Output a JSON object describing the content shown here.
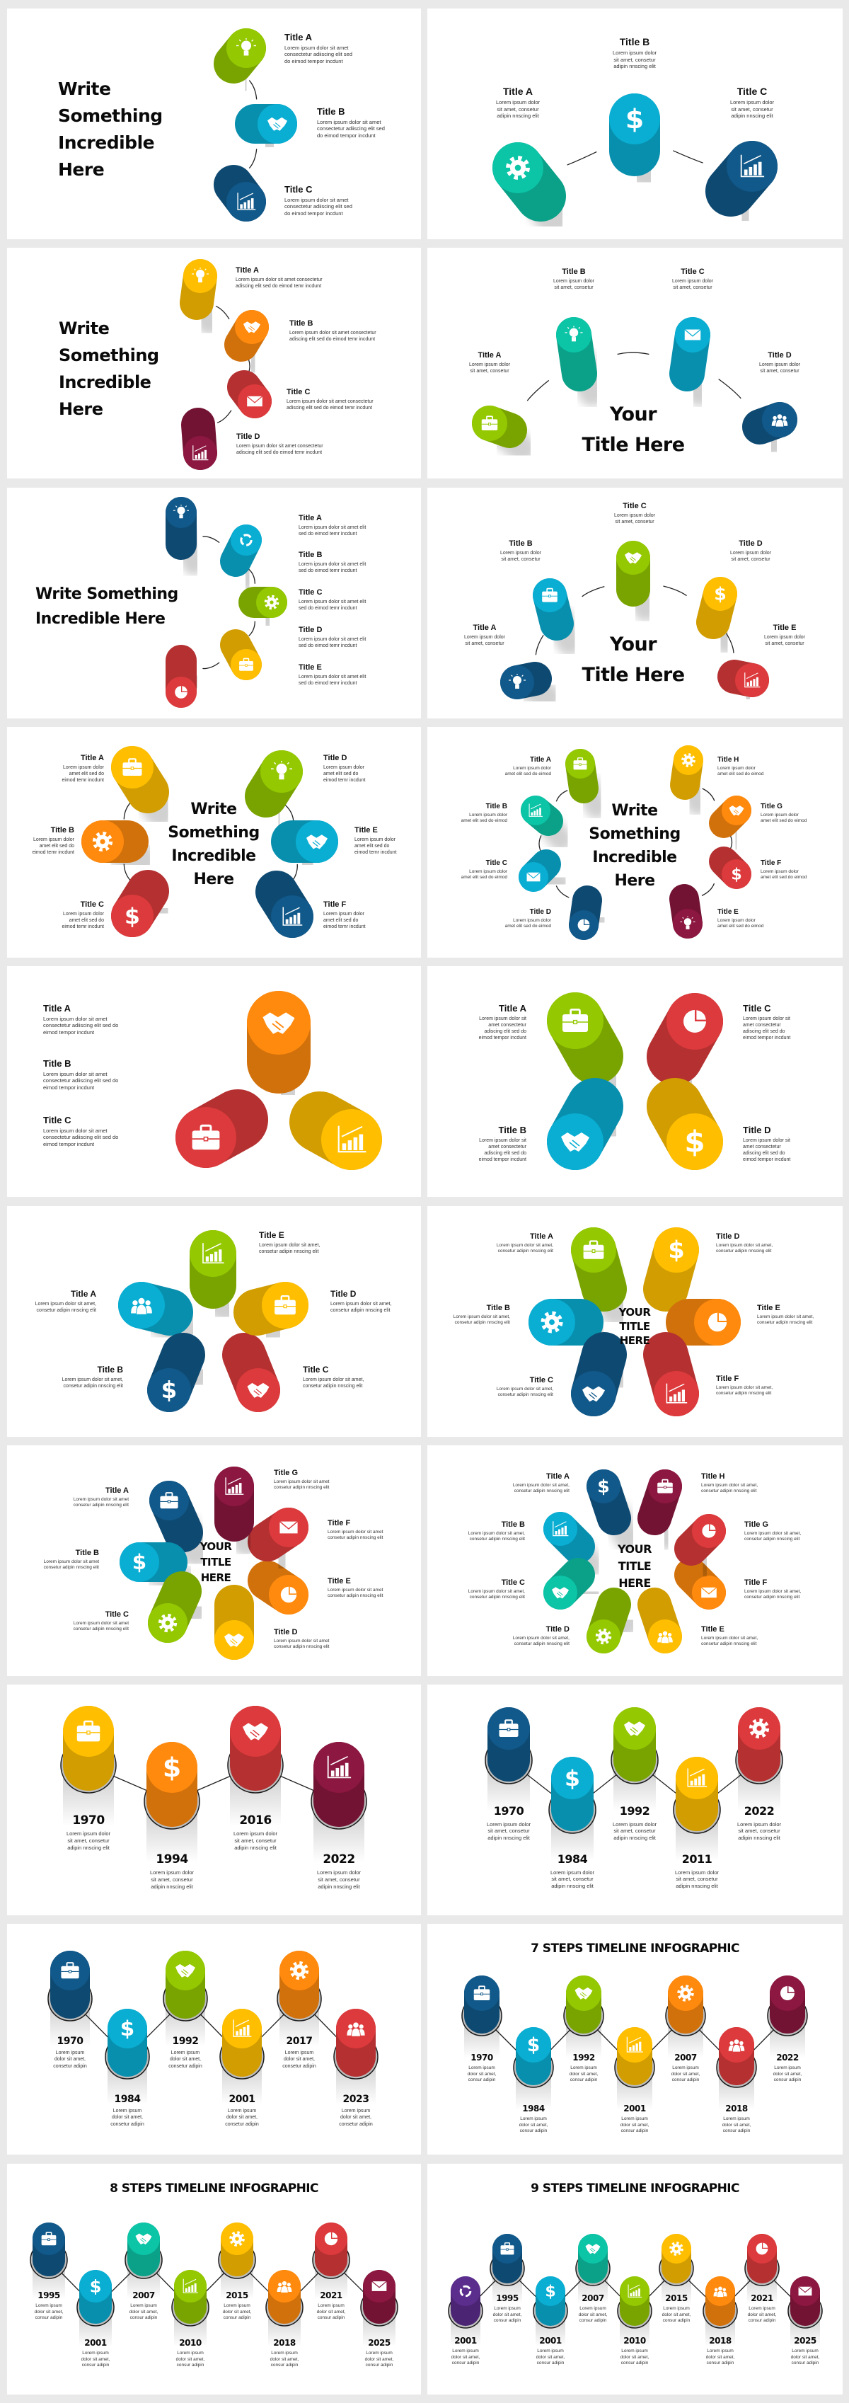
{
  "colors": {
    "green": "#94c800",
    "cyan": "#0aaed3",
    "teal": "#0cc4a6",
    "navy": "#11598a",
    "yellow": "#ffbf00",
    "orange": "#ff8a0e",
    "red": "#dc3a3c",
    "maroon": "#8c1740",
    "purple": "#5b2d8c"
  },
  "panels": [
    {
      "title_lines": [
        "Write",
        "Something",
        "Incredible",
        "Here"
      ],
      "desc": "Lorem ipsum dolor sit amet\nconsectetur adiiscing elit sed\ndo eimod tempor incdunt",
      "items": [
        {
          "title": "Title A",
          "color": "#94c800",
          "icon": "lightbulb"
        },
        {
          "title": "Title B",
          "color": "#0aaed3",
          "icon": "handshake"
        },
        {
          "title": "Title C",
          "color": "#11598a",
          "icon": "bar-chart"
        }
      ]
    },
    {
      "desc": "Lorem ipsum dolor\nsit amet, consetur\nadipin nnscing elit",
      "items": [
        {
          "title": "Title A",
          "color": "#0cc4a6",
          "icon": "gear"
        },
        {
          "title": "Title B",
          "color": "#0aaed3",
          "icon": "dollar"
        },
        {
          "title": "Title C",
          "color": "#11598a",
          "icon": "bar-chart"
        }
      ]
    },
    {
      "title_lines": [
        "Write",
        "Something",
        "Incredible",
        "Here"
      ],
      "desc": "Lorem ipsum dolor sit amet consectetur\nadiscing elit sed do eimod temr incdunt",
      "items": [
        {
          "title": "Title A",
          "color": "#ffbf00",
          "icon": "lightbulb"
        },
        {
          "title": "Title B",
          "color": "#ff8a0e",
          "icon": "handshake"
        },
        {
          "title": "Title C",
          "color": "#dc3a3c",
          "icon": "mail"
        },
        {
          "title": "Title D",
          "color": "#8c1740",
          "icon": "bar-chart"
        }
      ]
    },
    {
      "title_lines": [
        "Your",
        "Title Here"
      ],
      "desc": "Lorem ipsum dolor\nsit amet, consetur",
      "items": [
        {
          "title": "Title A",
          "color": "#94c800",
          "icon": "briefcase"
        },
        {
          "title": "Title B",
          "color": "#0cc4a6",
          "icon": "lightbulb"
        },
        {
          "title": "Title C",
          "color": "#0aaed3",
          "icon": "mail"
        },
        {
          "title": "Title D",
          "color": "#11598a",
          "icon": "users"
        }
      ]
    },
    {
      "title_lines": [
        "Write Something",
        "Incredible Here"
      ],
      "desc": "Lorem ipsum dolor sit amet elit\nsed do eimod temr incdunt",
      "items": [
        {
          "title": "Title A",
          "color": "#11598a",
          "icon": "lightbulb"
        },
        {
          "title": "Title B",
          "color": "#0aaed3",
          "icon": "cycle"
        },
        {
          "title": "Title C",
          "color": "#94c800",
          "icon": "gear"
        },
        {
          "title": "Title D",
          "color": "#ffbf00",
          "icon": "briefcase"
        },
        {
          "title": "Title E",
          "color": "#dc3a3c",
          "icon": "pie-chart"
        }
      ]
    },
    {
      "title_lines": [
        "Your",
        "Title Here"
      ],
      "desc": "Lorem ipsum dolor\nsit amet, consetur",
      "items": [
        {
          "title": "Title A",
          "color": "#11598a",
          "icon": "lightbulb"
        },
        {
          "title": "Title B",
          "color": "#0aaed3",
          "icon": "briefcase"
        },
        {
          "title": "Title C",
          "color": "#94c800",
          "icon": "handshake"
        },
        {
          "title": "Title D",
          "color": "#ffbf00",
          "icon": "dollar"
        },
        {
          "title": "Title E",
          "color": "#dc3a3c",
          "icon": "bar-chart"
        }
      ]
    },
    {
      "title_lines": [
        "Write",
        "Something",
        "Incredible",
        "Here"
      ],
      "desc": "Lorem ipsum dolor\namet elit sed do\neimod temr incdunt",
      "items": [
        {
          "title": "Title A",
          "color": "#ffbf00",
          "icon": "briefcase"
        },
        {
          "title": "Title B",
          "color": "#ff8a0e",
          "icon": "gear"
        },
        {
          "title": "Title C",
          "color": "#dc3a3c",
          "icon": "dollar"
        },
        {
          "title": "Title D",
          "color": "#94c800",
          "icon": "lightbulb"
        },
        {
          "title": "Title E",
          "color": "#0aaed3",
          "icon": "handshake"
        },
        {
          "title": "Title F",
          "color": "#11598a",
          "icon": "bar-chart"
        }
      ]
    },
    {
      "title_lines": [
        "Write",
        "Something",
        "Incredible",
        "Here"
      ],
      "desc": "Lorem ipsum dolor\namet elit sed do eimod",
      "items": [
        {
          "title": "Title A",
          "color": "#94c800",
          "icon": "briefcase"
        },
        {
          "title": "Title B",
          "color": "#0cc4a6",
          "icon": "bar-chart"
        },
        {
          "title": "Title C",
          "color": "#0aaed3",
          "icon": "mail"
        },
        {
          "title": "Title D",
          "color": "#11598a",
          "icon": "pie-chart"
        },
        {
          "title": "Title E",
          "color": "#8c1740",
          "icon": "lightbulb"
        },
        {
          "title": "Title F",
          "color": "#dc3a3c",
          "icon": "dollar"
        },
        {
          "title": "Title G",
          "color": "#ff8a0e",
          "icon": "handshake"
        },
        {
          "title": "Title H",
          "color": "#ffbf00",
          "icon": "gear"
        }
      ]
    },
    {
      "desc": "Lorem ipsum dolor sit amet\nconsectetur adiiscing elit sed do\neimod tempor incdunt",
      "items": [
        {
          "title": "Title A",
          "color": "#ff8a0e",
          "icon": "handshake"
        },
        {
          "title": "Title B",
          "color": "#dc3a3c",
          "icon": "briefcase"
        },
        {
          "title": "Title C",
          "color": "#ffbf00",
          "icon": "bar-chart"
        }
      ]
    },
    {
      "desc": "Lorem ipsum dolor sit\namet consectetur\nadiscing elit sed do\neimod tempor incdunt",
      "items": [
        {
          "title": "Title A",
          "color": "#94c800",
          "icon": "briefcase"
        },
        {
          "title": "Title B",
          "color": "#0aaed3",
          "icon": "handshake"
        },
        {
          "title": "Title C",
          "color": "#dc3a3c",
          "icon": "pie-chart"
        },
        {
          "title": "Title D",
          "color": "#ffbf00",
          "icon": "dollar"
        }
      ]
    },
    {
      "desc": "Lorem ipsum dolor sit amet,\nconsetur adipin nnscing elit",
      "items": [
        {
          "title": "Title A",
          "color": "#0aaed3",
          "icon": "users"
        },
        {
          "title": "Title B",
          "color": "#11598a",
          "icon": "dollar"
        },
        {
          "title": "Title C",
          "color": "#dc3a3c",
          "icon": "handshake"
        },
        {
          "title": "Title D",
          "color": "#ffbf00",
          "icon": "briefcase"
        },
        {
          "title": "Title E",
          "color": "#94c800",
          "icon": "bar-chart"
        }
      ]
    },
    {
      "title_lines": [
        "YOUR",
        "TITLE",
        "HERE"
      ],
      "desc": "Lorem ipsum dolor sit amet,\nconsetur adipin nnscing elit",
      "items": [
        {
          "title": "Title A",
          "color": "#94c800",
          "icon": "briefcase"
        },
        {
          "title": "Title B",
          "color": "#0aaed3",
          "icon": "gear"
        },
        {
          "title": "Title C",
          "color": "#11598a",
          "icon": "handshake"
        },
        {
          "title": "Title D",
          "color": "#ffbf00",
          "icon": "dollar"
        },
        {
          "title": "Title E",
          "color": "#ff8a0e",
          "icon": "pie-chart"
        },
        {
          "title": "Title F",
          "color": "#dc3a3c",
          "icon": "bar-chart"
        }
      ]
    },
    {
      "title_lines": [
        "YOUR",
        "TITLE",
        "HERE"
      ],
      "desc": "Lorem ipsum dolor sit amet\nconsetur adipin nnscing elit",
      "items": [
        {
          "title": "Title A",
          "color": "#11598a",
          "icon": "briefcase"
        },
        {
          "title": "Title B",
          "color": "#0aaed3",
          "icon": "dollar"
        },
        {
          "title": "Title C",
          "color": "#94c800",
          "icon": "gear"
        },
        {
          "title": "Title D",
          "color": "#ffbf00",
          "icon": "handshake"
        },
        {
          "title": "Title E",
          "color": "#ff8a0e",
          "icon": "pie-chart"
        },
        {
          "title": "Title F",
          "color": "#dc3a3c",
          "icon": "mail"
        },
        {
          "title": "Title G",
          "color": "#8c1740",
          "icon": "bar-chart"
        }
      ]
    },
    {
      "title_lines": [
        "YOUR",
        "TITLE",
        "HERE"
      ],
      "desc": "Lorem ipsum dolor sit amet,\nconsetur adipin nnscing elit",
      "items": [
        {
          "title": "Title A",
          "color": "#11598a",
          "icon": "dollar"
        },
        {
          "title": "Title B",
          "color": "#0aaed3",
          "icon": "bar-chart"
        },
        {
          "title": "Title C",
          "color": "#0cc4a6",
          "icon": "handshake"
        },
        {
          "title": "Title D",
          "color": "#94c800",
          "icon": "gear"
        },
        {
          "title": "Title E",
          "color": "#ffbf00",
          "icon": "users"
        },
        {
          "title": "Title F",
          "color": "#ff8a0e",
          "icon": "mail"
        },
        {
          "title": "Title G",
          "color": "#dc3a3c",
          "icon": "pie-chart"
        },
        {
          "title": "Title H",
          "color": "#8c1740",
          "icon": "briefcase"
        }
      ]
    },
    {
      "desc": "Lorem ipsum dolor\nsit amet, consetur\nadipin nnscing elit",
      "items": [
        {
          "year": "1970",
          "color": "#ffbf00",
          "icon": "briefcase"
        },
        {
          "year": "1994",
          "color": "#ff8a0e",
          "icon": "dollar"
        },
        {
          "year": "2016",
          "color": "#dc3a3c",
          "icon": "handshake"
        },
        {
          "year": "2022",
          "color": "#8c1740",
          "icon": "bar-chart"
        }
      ]
    },
    {
      "desc": "Lorem ipsum dolor\nsit amet, consetur\nadipin nnscing elit",
      "items": [
        {
          "year": "1970",
          "color": "#11598a",
          "icon": "briefcase"
        },
        {
          "year": "1984",
          "color": "#0aaed3",
          "icon": "dollar"
        },
        {
          "year": "1992",
          "color": "#94c800",
          "icon": "handshake"
        },
        {
          "year": "2011",
          "color": "#ffbf00",
          "icon": "bar-chart"
        },
        {
          "year": "2022",
          "color": "#dc3a3c",
          "icon": "gear"
        }
      ]
    },
    {
      "desc": "Lorem ipsum\ndolor sit amet,\nconsetur adipin",
      "items": [
        {
          "year": "1970",
          "color": "#11598a",
          "icon": "briefcase"
        },
        {
          "year": "1984",
          "color": "#0aaed3",
          "icon": "dollar"
        },
        {
          "year": "1992",
          "color": "#94c800",
          "icon": "handshake"
        },
        {
          "year": "2001",
          "color": "#ffbf00",
          "icon": "bar-chart"
        },
        {
          "year": "2017",
          "color": "#ff8a0e",
          "icon": "gear"
        },
        {
          "year": "2023",
          "color": "#dc3a3c",
          "icon": "users"
        }
      ]
    },
    {
      "heading": "7 STEPS TIMELINE INFOGRAPHIC",
      "desc": "Lorem ipsum\ndolor sit amet,\nconsur adipin",
      "items": [
        {
          "year": "1970",
          "color": "#11598a",
          "icon": "briefcase"
        },
        {
          "year": "1984",
          "color": "#0aaed3",
          "icon": "dollar"
        },
        {
          "year": "1992",
          "color": "#94c800",
          "icon": "handshake"
        },
        {
          "year": "2001",
          "color": "#ffbf00",
          "icon": "bar-chart"
        },
        {
          "year": "2007",
          "color": "#ff8a0e",
          "icon": "gear"
        },
        {
          "year": "2018",
          "color": "#dc3a3c",
          "icon": "users"
        },
        {
          "year": "2022",
          "color": "#8c1740",
          "icon": "pie-chart"
        }
      ]
    },
    {
      "heading": "8 STEPS TIMELINE INFOGRAPHIC",
      "desc": "Lorem ipsum\ndolor sit amet,\nconsur adipin",
      "items": [
        {
          "year": "1995",
          "color": "#11598a",
          "icon": "briefcase"
        },
        {
          "year": "2001",
          "color": "#0aaed3",
          "icon": "dollar"
        },
        {
          "year": "2007",
          "color": "#0cc4a6",
          "icon": "handshake"
        },
        {
          "year": "2010",
          "color": "#94c800",
          "icon": "bar-chart"
        },
        {
          "year": "2015",
          "color": "#ffbf00",
          "icon": "gear"
        },
        {
          "year": "2018",
          "color": "#ff8a0e",
          "icon": "users"
        },
        {
          "year": "2021",
          "color": "#dc3a3c",
          "icon": "pie-chart"
        },
        {
          "year": "2025",
          "color": "#8c1740",
          "icon": "mail"
        }
      ]
    },
    {
      "heading": "9 STEPS TIMELINE INFOGRAPHIC",
      "desc": "Lorem ipsum\ndolor sit amet,\nconsur adipin",
      "items": [
        {
          "year": "2001",
          "color": "#5b2d8c",
          "icon": "cycle"
        },
        {
          "year": "1995",
          "color": "#11598a",
          "icon": "briefcase"
        },
        {
          "year": "2001",
          "color": "#0aaed3",
          "icon": "dollar"
        },
        {
          "year": "2007",
          "color": "#0cc4a6",
          "icon": "handshake"
        },
        {
          "year": "2010",
          "color": "#94c800",
          "icon": "bar-chart"
        },
        {
          "year": "2015",
          "color": "#ffbf00",
          "icon": "gear"
        },
        {
          "year": "2018",
          "color": "#ff8a0e",
          "icon": "users"
        },
        {
          "year": "2021",
          "color": "#dc3a3c",
          "icon": "pie-chart"
        },
        {
          "year": "2025",
          "color": "#8c1740",
          "icon": "mail"
        }
      ]
    }
  ]
}
